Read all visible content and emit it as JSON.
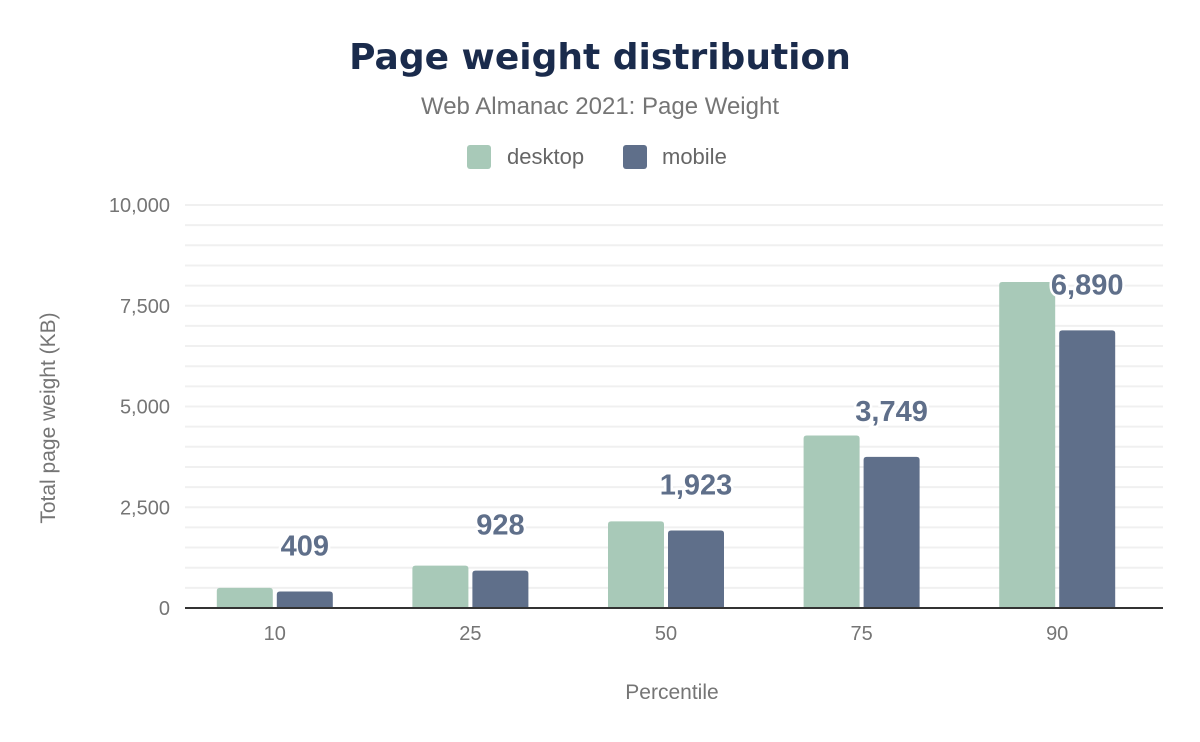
{
  "chart_data": {
    "type": "bar",
    "title": "Page weight distribution",
    "subtitle": "Web Almanac 2021: Page Weight",
    "xlabel": "Percentile",
    "ylabel": "Total page weight (KB)",
    "categories": [
      "10",
      "25",
      "50",
      "75",
      "90"
    ],
    "series": [
      {
        "name": "desktop",
        "color": "#a8c9b8",
        "values": [
          500,
          1050,
          2150,
          4280,
          8090
        ],
        "show_labels": false
      },
      {
        "name": "mobile",
        "color": "#5f6f8a",
        "values": [
          409,
          928,
          1923,
          3749,
          6890
        ],
        "show_labels": true
      }
    ],
    "data_labels": [
      "409",
      "928",
      "1,923",
      "3,749",
      "6,890"
    ],
    "ylim": [
      0,
      10000
    ],
    "yticks": [
      0,
      2500,
      5000,
      7500,
      10000
    ],
    "ytick_labels": [
      "0",
      "2,500",
      "5,000",
      "7,500",
      "10,000"
    ],
    "grid": true,
    "legend_position": "top-center"
  }
}
